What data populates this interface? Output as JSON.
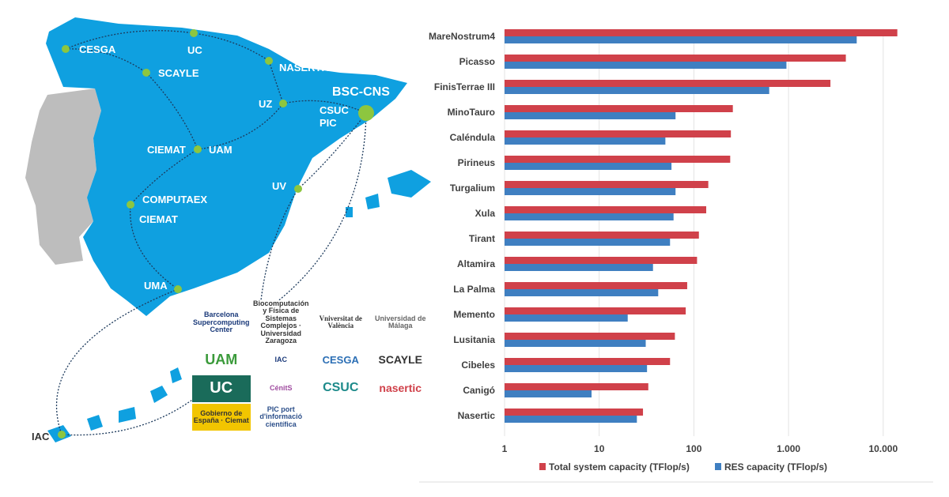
{
  "map": {
    "nodes": [
      {
        "label": "CESGA"
      },
      {
        "label": "UC"
      },
      {
        "label": "NASERTIC"
      },
      {
        "label": "SCAYLE"
      },
      {
        "label": "UZ"
      },
      {
        "label": "BSC-CNS"
      },
      {
        "label": "CSUC"
      },
      {
        "label": "PIC"
      },
      {
        "label": "CIEMAT"
      },
      {
        "label": "UAM"
      },
      {
        "label": "UV"
      },
      {
        "label": "COMPUTAEX"
      },
      {
        "label": "CIEMAT"
      },
      {
        "label": "UMA"
      },
      {
        "label": "IAC"
      }
    ],
    "logos": [
      "Barcelona Supercomputing Center",
      "Biocomputación y Física de Sistemas Complejos · Universidad Zaragoza",
      "Vniversitat de València",
      "Universidad de Málaga",
      "UAM",
      "IAC",
      "CESGA",
      "SCAYLE",
      "UC",
      "CénitS",
      "CSUC",
      "nasertic",
      "Gobierno de España · Ciemat",
      "PIC port d'informació científica"
    ],
    "colors": {
      "spain": "#0fa0e0",
      "portugal": "#bdbdbd",
      "node": "#8dc63f"
    }
  },
  "chart_data": {
    "type": "bar",
    "orientation": "horizontal",
    "xscale": "log",
    "xlim": [
      1,
      23000
    ],
    "xticks": [
      "1",
      "10",
      "100",
      "1.000",
      "10.000"
    ],
    "xtick_values": [
      1,
      10,
      100,
      1000,
      10000
    ],
    "categories": [
      "MareNostrum4",
      "Picasso",
      "FinisTerrae III",
      "MinoTauro",
      "Caléndula",
      "Pirineus",
      "Turgalium",
      "Xula",
      "Tirant",
      "Altamira",
      "La Palma",
      "Memento",
      "Lusitania",
      "Cibeles",
      "Canigó",
      "Nasertic"
    ],
    "series": [
      {
        "name": "Total system capacity (TFlop/s)",
        "color": "#d0414a",
        "values": [
          14100,
          4030,
          2770,
          258,
          246,
          242,
          142,
          135,
          113,
          108,
          85,
          82,
          63,
          56,
          33,
          29
        ]
      },
      {
        "name": "RES capacity (TFlop/s)",
        "color": "#3f7fc1",
        "values": [
          5250,
          950,
          625,
          64,
          50,
          58,
          64,
          61,
          56,
          37,
          42,
          20,
          31,
          32,
          8.3,
          25
        ]
      }
    ],
    "legend": "bottom",
    "grid": true
  }
}
